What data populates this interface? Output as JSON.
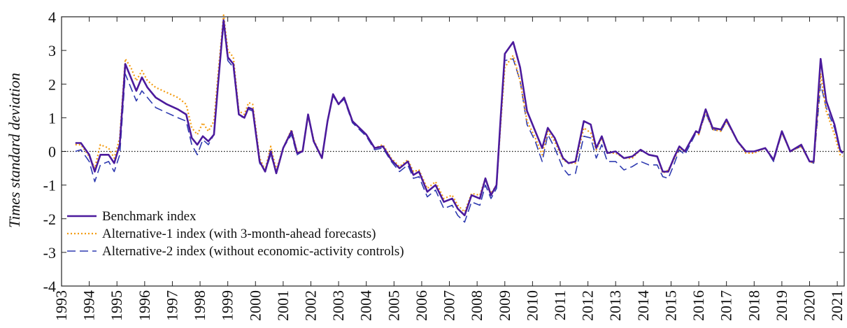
{
  "chart_data": {
    "type": "line",
    "y_label": "Times standard deviation",
    "x": [
      1993.5,
      1993.7,
      1994.0,
      1994.2,
      1994.4,
      1994.7,
      1994.9,
      1995.1,
      1995.3,
      1995.5,
      1995.7,
      1995.9,
      1996.1,
      1996.4,
      1996.8,
      1997.2,
      1997.5,
      1997.7,
      1997.9,
      1998.1,
      1998.3,
      1998.5,
      1998.65,
      1998.85,
      1999.0,
      1999.2,
      1999.4,
      1999.6,
      1999.75,
      1999.9,
      2000.15,
      2000.35,
      2000.55,
      2000.75,
      2001.0,
      2001.3,
      2001.5,
      2001.7,
      2001.9,
      2002.1,
      2002.4,
      2002.6,
      2002.8,
      2003.0,
      2003.2,
      2003.5,
      2004.0,
      2004.3,
      2004.6,
      2004.9,
      2005.2,
      2005.5,
      2005.7,
      2005.9,
      2006.2,
      2006.5,
      2006.8,
      2007.1,
      2007.3,
      2007.55,
      2007.8,
      2008.1,
      2008.3,
      2008.5,
      2008.7,
      2008.85,
      2009.0,
      2009.3,
      2009.55,
      2009.8,
      2010.1,
      2010.35,
      2010.55,
      2010.8,
      2011.1,
      2011.3,
      2011.55,
      2011.85,
      2012.1,
      2012.3,
      2012.5,
      2012.7,
      2013.0,
      2013.3,
      2013.6,
      2013.9,
      2014.2,
      2014.5,
      2014.7,
      2014.9,
      2015.1,
      2015.3,
      2015.5,
      2015.9,
      2016.0,
      2016.25,
      2016.5,
      2016.8,
      2017.0,
      2017.4,
      2017.7,
      2018.0,
      2018.4,
      2018.7,
      2019.0,
      2019.3,
      2019.7,
      2020.0,
      2020.15,
      2020.4,
      2020.6,
      2020.9,
      2021.1,
      2021.2
    ],
    "series": [
      {
        "name": "Benchmark index",
        "color": "#4b1a9c",
        "style": "solid",
        "values": [
          0.25,
          0.25,
          -0.1,
          -0.6,
          -0.1,
          -0.1,
          -0.35,
          0.2,
          2.6,
          2.2,
          1.8,
          2.2,
          1.9,
          1.6,
          1.4,
          1.25,
          1.1,
          0.4,
          0.2,
          0.45,
          0.3,
          0.5,
          2.0,
          3.9,
          2.8,
          2.6,
          1.1,
          1.0,
          1.3,
          1.25,
          -0.3,
          -0.6,
          0.0,
          -0.65,
          0.1,
          0.6,
          -0.05,
          0.0,
          1.1,
          0.3,
          -0.2,
          0.9,
          1.7,
          1.4,
          1.6,
          0.9,
          0.5,
          0.1,
          0.15,
          -0.25,
          -0.5,
          -0.3,
          -0.7,
          -0.6,
          -1.2,
          -1.0,
          -1.5,
          -1.4,
          -1.7,
          -1.9,
          -1.3,
          -1.4,
          -0.8,
          -1.3,
          -1.0,
          1.0,
          2.9,
          3.25,
          2.5,
          1.2,
          0.6,
          0.1,
          0.7,
          0.4,
          -0.2,
          -0.35,
          -0.3,
          0.9,
          0.8,
          0.1,
          0.45,
          -0.05,
          0.0,
          -0.2,
          -0.15,
          0.05,
          -0.1,
          -0.15,
          -0.6,
          -0.6,
          -0.2,
          0.15,
          0.0,
          0.6,
          0.55,
          1.25,
          0.7,
          0.65,
          0.95,
          0.3,
          0.0,
          0.0,
          0.1,
          -0.25,
          0.6,
          0.0,
          0.2,
          -0.3,
          -0.3,
          2.75,
          1.5,
          0.8,
          0.05,
          -0.05
        ]
      },
      {
        "name": "Alternative-1 index (with 3-month-ahead forecasts)",
        "color": "#f39c12",
        "style": "dotted",
        "values": [
          0.2,
          0.2,
          -0.15,
          -0.5,
          0.2,
          0.1,
          -0.2,
          0.4,
          2.75,
          2.5,
          2.1,
          2.4,
          2.1,
          1.9,
          1.75,
          1.6,
          1.4,
          0.7,
          0.5,
          0.85,
          0.6,
          0.9,
          2.3,
          4.05,
          3.0,
          2.8,
          1.2,
          1.1,
          1.45,
          1.4,
          -0.2,
          -0.55,
          0.15,
          -0.55,
          0.1,
          0.65,
          0.0,
          0.0,
          1.05,
          0.35,
          -0.2,
          0.9,
          1.7,
          1.4,
          1.6,
          0.9,
          0.5,
          0.1,
          0.2,
          -0.2,
          -0.45,
          -0.25,
          -0.6,
          -0.55,
          -1.1,
          -0.9,
          -1.4,
          -1.3,
          -1.6,
          -1.8,
          -1.25,
          -1.3,
          -0.8,
          -1.25,
          -1.0,
          0.8,
          2.5,
          2.85,
          2.1,
          0.9,
          0.4,
          -0.1,
          0.6,
          0.3,
          -0.25,
          -0.35,
          -0.35,
          0.7,
          0.55,
          0.05,
          0.4,
          -0.05,
          -0.05,
          -0.2,
          -0.2,
          0.05,
          -0.1,
          -0.15,
          -0.65,
          -0.55,
          -0.25,
          0.1,
          0.0,
          0.6,
          0.5,
          1.2,
          0.65,
          0.6,
          0.9,
          0.3,
          -0.05,
          -0.05,
          0.1,
          -0.25,
          0.55,
          0.0,
          0.15,
          -0.3,
          -0.35,
          2.3,
          1.2,
          0.5,
          -0.1,
          -0.15
        ]
      },
      {
        "name": "Alternative-2 index (without economic-activity controls)",
        "color": "#2e3ab0",
        "style": "dashed",
        "values": [
          0.0,
          0.05,
          -0.3,
          -0.9,
          -0.4,
          -0.3,
          -0.6,
          -0.1,
          2.3,
          1.9,
          1.5,
          1.8,
          1.6,
          1.3,
          1.15,
          1.0,
          0.9,
          0.2,
          -0.1,
          0.35,
          0.2,
          0.5,
          2.0,
          3.8,
          2.7,
          2.5,
          1.05,
          1.0,
          1.25,
          1.2,
          -0.35,
          -0.6,
          -0.1,
          -0.6,
          0.1,
          0.5,
          -0.1,
          0.0,
          1.05,
          0.3,
          -0.2,
          0.9,
          1.65,
          1.4,
          1.55,
          0.85,
          0.45,
          0.05,
          0.1,
          -0.3,
          -0.6,
          -0.4,
          -0.8,
          -0.75,
          -1.35,
          -1.15,
          -1.7,
          -1.6,
          -1.9,
          -2.1,
          -1.5,
          -1.6,
          -1.0,
          -1.4,
          -1.1,
          0.9,
          2.7,
          2.75,
          2.1,
          0.8,
          0.3,
          -0.3,
          0.5,
          0.1,
          -0.5,
          -0.7,
          -0.65,
          0.45,
          0.4,
          -0.2,
          0.2,
          -0.3,
          -0.3,
          -0.55,
          -0.45,
          -0.3,
          -0.4,
          -0.4,
          -0.75,
          -0.8,
          -0.4,
          0.05,
          -0.1,
          0.55,
          0.5,
          1.15,
          0.65,
          0.6,
          0.9,
          0.3,
          0.0,
          0.0,
          0.1,
          -0.3,
          0.55,
          0.0,
          0.15,
          -0.3,
          -0.35,
          2.0,
          1.3,
          0.7,
          0.0,
          -0.05
        ]
      }
    ],
    "xlim": [
      1993,
      2021.25
    ],
    "xticks": [
      1993,
      1994,
      1995,
      1996,
      1997,
      1998,
      1999,
      2000,
      2001,
      2002,
      2003,
      2004,
      2005,
      2006,
      2007,
      2008,
      2009,
      2010,
      2011,
      2012,
      2013,
      2014,
      2015,
      2016,
      2017,
      2018,
      2019,
      2020,
      2021
    ],
    "ylim": [
      -4,
      4
    ],
    "yticks": [
      -4,
      -3,
      -2,
      -1,
      0,
      1,
      2,
      3,
      4
    ],
    "hline": 0,
    "legend": "lower left"
  }
}
